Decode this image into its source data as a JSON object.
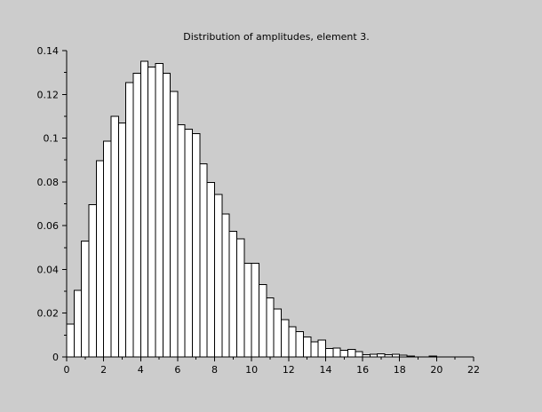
{
  "colors": {
    "background": "#cccccc",
    "bar_fill": "#ffffff",
    "bar_stroke": "#000000",
    "axis": "#000000"
  },
  "chart_data": {
    "type": "bar",
    "title": "Distribution of amplitudes, element 3.",
    "xlabel": "",
    "ylabel": "",
    "xlim": [
      0,
      22
    ],
    "ylim": [
      0,
      0.14
    ],
    "grid": false,
    "legend": "none",
    "x_ticks": [
      "0",
      "2",
      "4",
      "6",
      "8",
      "10",
      "12",
      "14",
      "16",
      "18",
      "20",
      "22"
    ],
    "y_ticks": [
      "0",
      "0.02",
      "0.04",
      "0.06",
      "0.08",
      "0.1",
      "0.12",
      "0.14"
    ],
    "bin_width": 0.4,
    "bin_start": 0,
    "values": [
      0.015,
      0.0305,
      0.053,
      0.0695,
      0.0897,
      0.0987,
      0.11,
      0.107,
      0.1253,
      0.1297,
      0.1352,
      0.1325,
      0.1342,
      0.1297,
      0.1213,
      0.1062,
      0.104,
      0.102,
      0.0883,
      0.0797,
      0.0742,
      0.0653,
      0.0575,
      0.054,
      0.0428,
      0.0428,
      0.033,
      0.027,
      0.022,
      0.017,
      0.0138,
      0.0115,
      0.0092,
      0.007,
      0.0077,
      0.0038,
      0.004,
      0.003,
      0.0035,
      0.0025,
      0.001,
      0.0012,
      0.0015,
      0.001,
      0.0012,
      0.0008,
      0.0005,
      0.0001,
      0.0001,
      0.0004,
      0.0001
    ]
  }
}
